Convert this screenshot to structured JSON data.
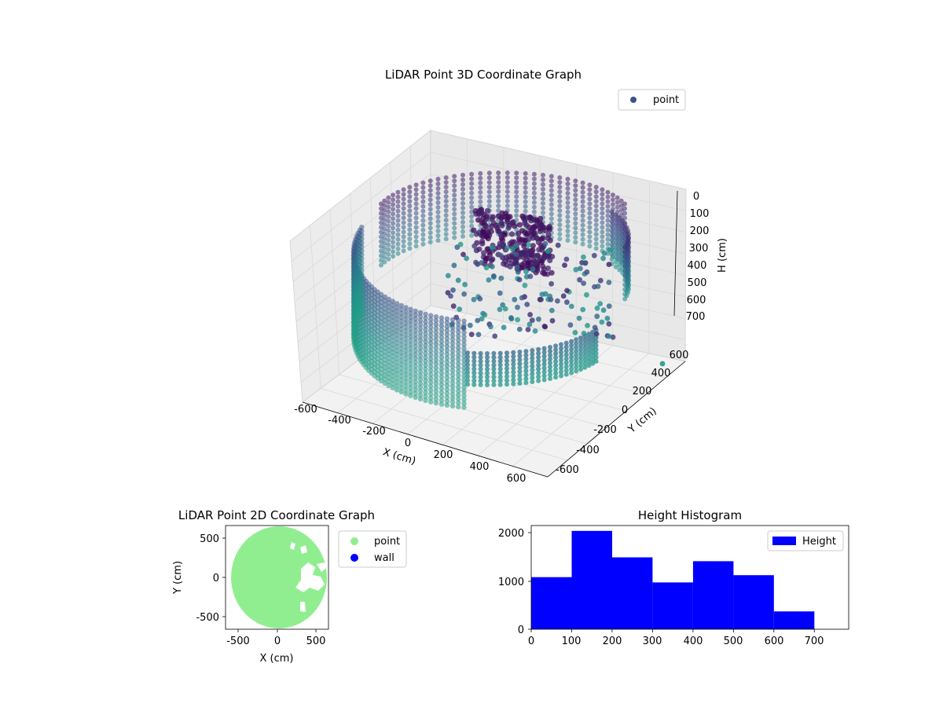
{
  "chart_data": [
    {
      "type": "scatter",
      "title": "LiDAR Point 3D Coordinate Graph",
      "xlabel": "X (cm)",
      "ylabel": "Y (cm)",
      "zlabel": "H (cm)",
      "legend": [
        "point"
      ],
      "legend_position": "top-right",
      "xlim": [
        -650,
        650
      ],
      "ylim": [
        -650,
        650
      ],
      "zlim": [
        0,
        780
      ],
      "z_inverted": true,
      "grid": true,
      "xticks": [
        "-600",
        "-400",
        "-200",
        "0",
        "200",
        "400",
        "600"
      ],
      "yticks": [
        "-600",
        "-400",
        "-200",
        "0",
        "200",
        "400",
        "600"
      ],
      "zticks": [
        "0",
        "100",
        "200",
        "300",
        "400",
        "500",
        "600",
        "700"
      ],
      "colormap": [
        "#440154",
        "#3b528b",
        "#21918c",
        "#27ad81"
      ]
    },
    {
      "type": "scatter",
      "title": "LiDAR Point 2D Coordinate Graph",
      "xlabel": "X (cm)",
      "ylabel": "Y (cm)",
      "xlim": [
        -680,
        680
      ],
      "ylim": [
        -680,
        680
      ],
      "xticks": [
        "-500",
        "0",
        "500"
      ],
      "yticks": [
        "-500",
        "0",
        "500"
      ],
      "legend_position": "outside-right",
      "series": [
        {
          "name": "point",
          "color": "#90ee90"
        },
        {
          "name": "wall",
          "color": "#0000ff"
        }
      ]
    },
    {
      "type": "bar",
      "title": "Height Histogram",
      "legend": [
        "Height"
      ],
      "legend_position": "top-right",
      "color": "#0000ff",
      "bin_edges": [
        0,
        100,
        200,
        300,
        400,
        500,
        600,
        700
      ],
      "values": [
        1080,
        2040,
        1490,
        970,
        1410,
        1120,
        370
      ],
      "xlim": [
        0,
        785
      ],
      "ylim": [
        0,
        2150
      ],
      "xticks": [
        "0",
        "100",
        "200",
        "300",
        "400",
        "500",
        "600",
        "700"
      ],
      "yticks": [
        "0",
        "1000",
        "2000"
      ]
    }
  ]
}
